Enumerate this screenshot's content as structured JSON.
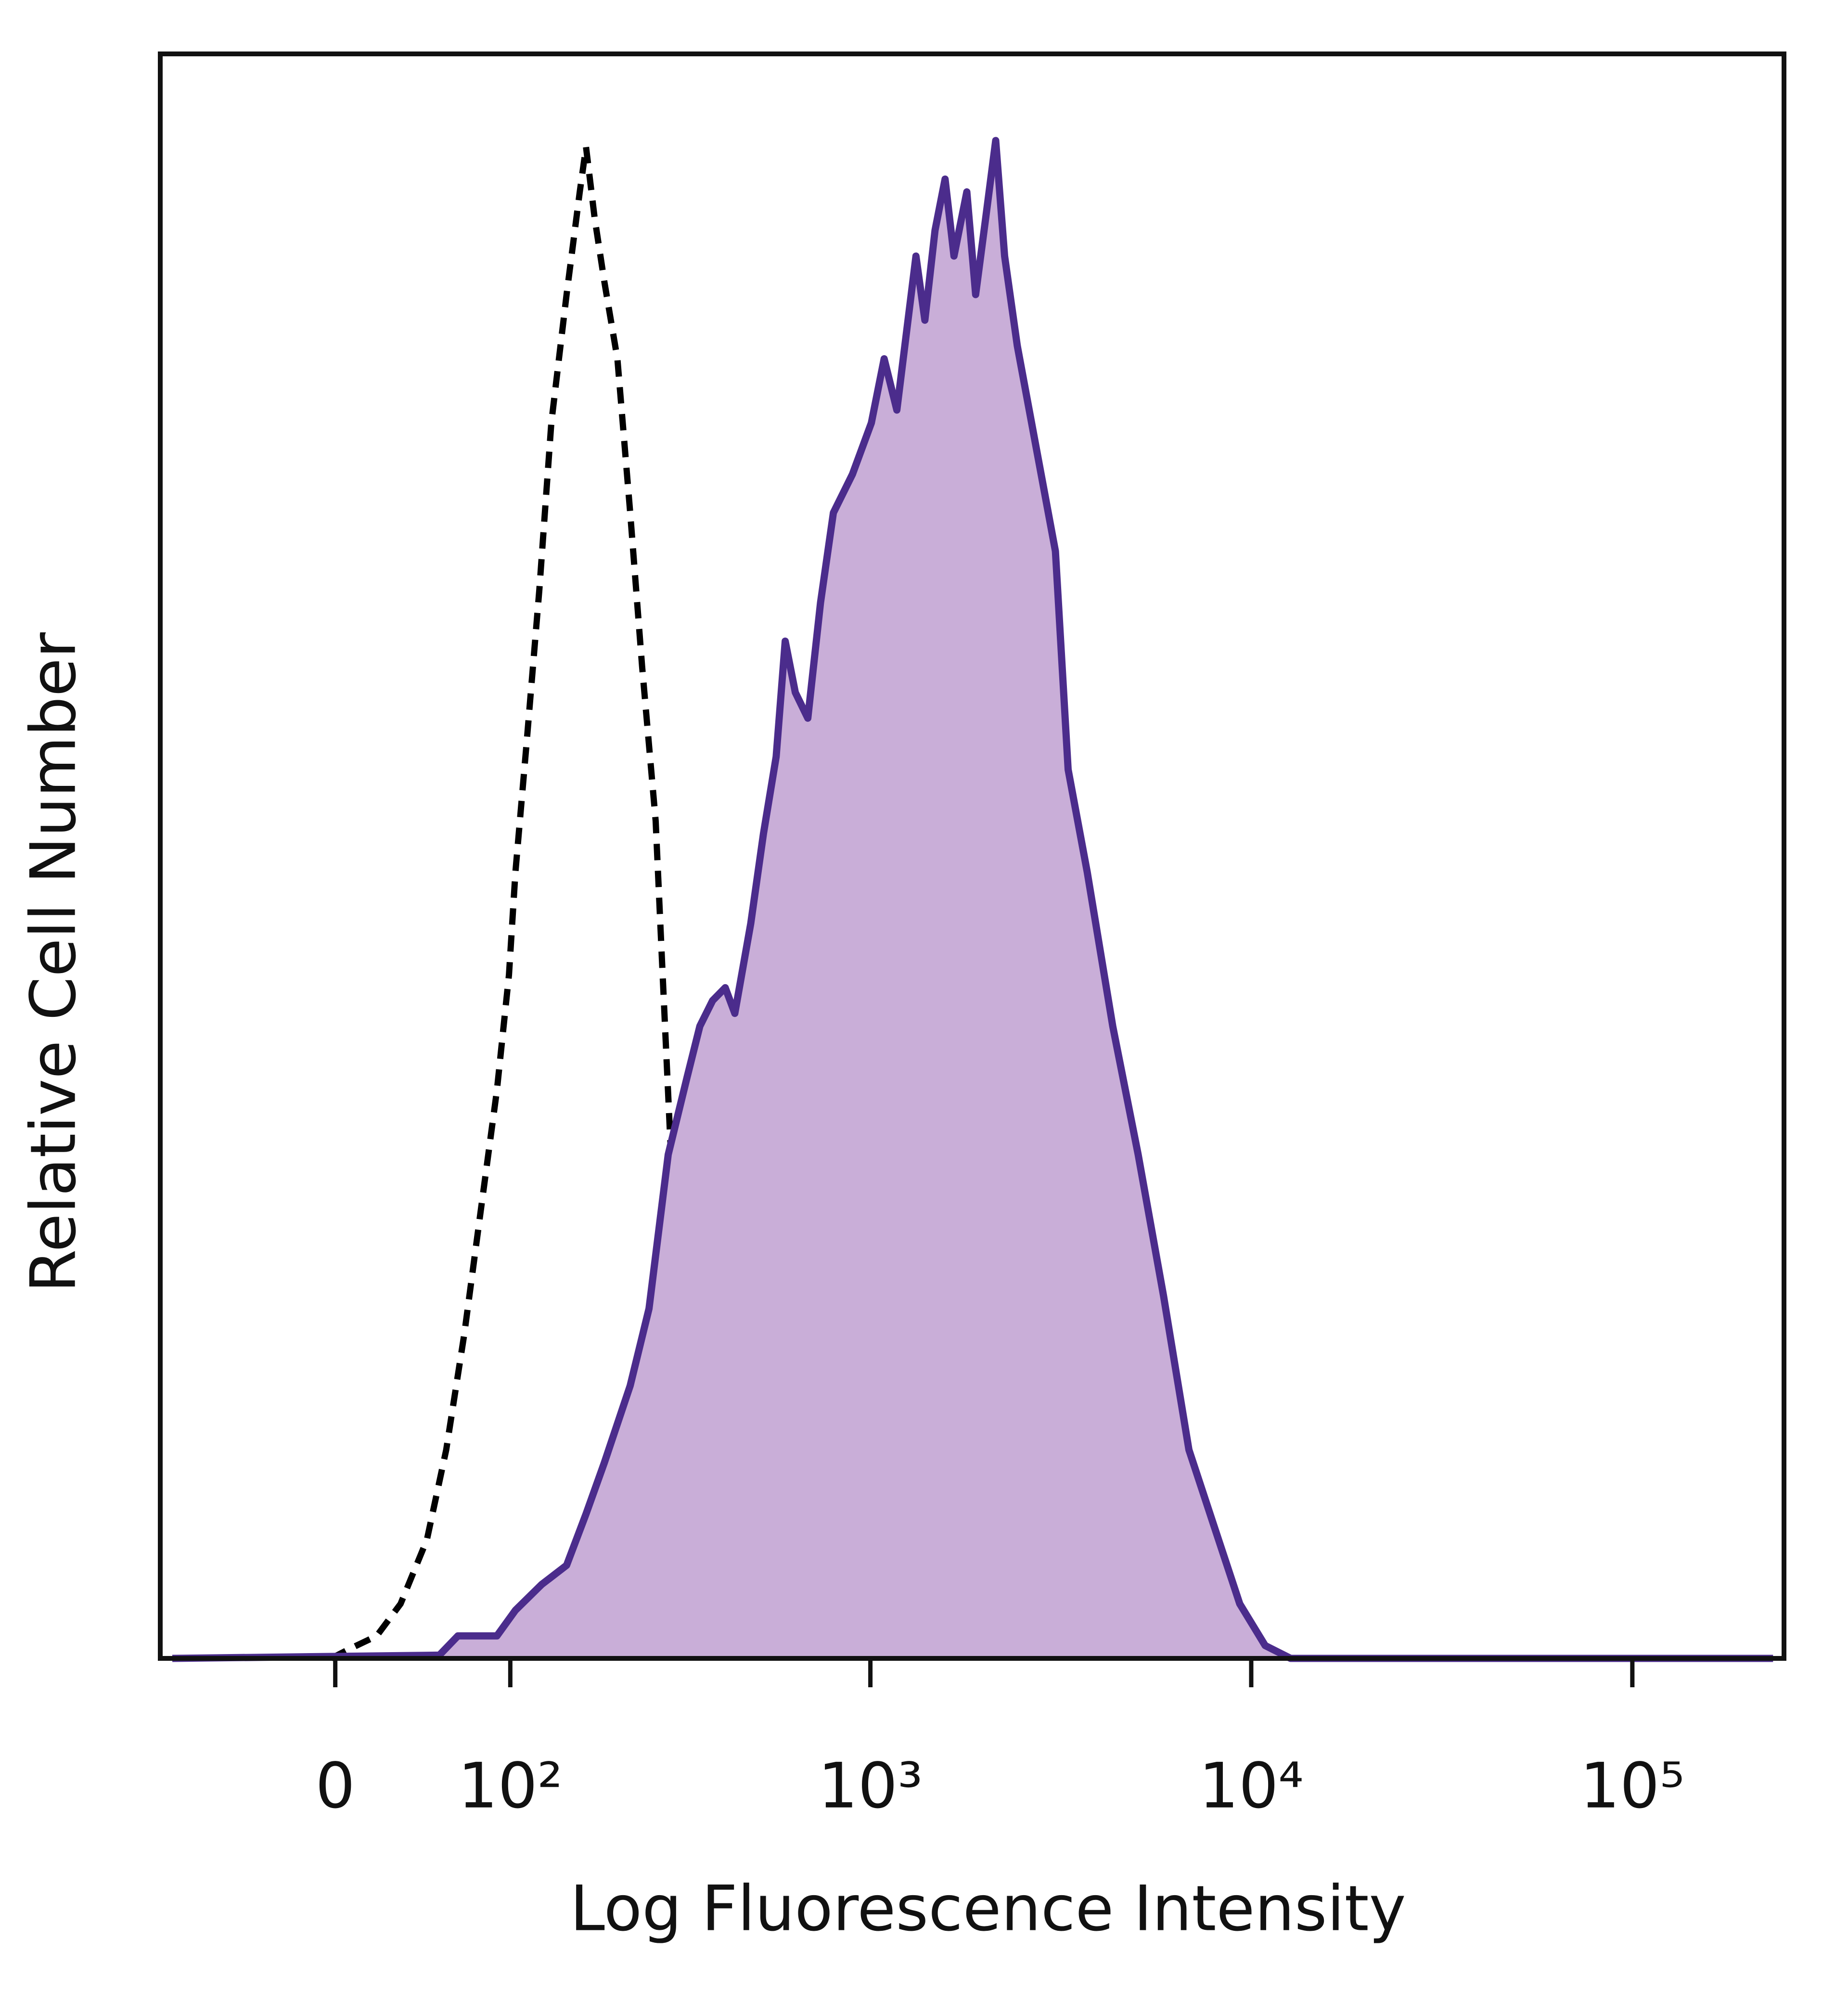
{
  "chart_data": {
    "type": "line",
    "x_label": "Log Fluorescence Intensity",
    "y_label": "Relative Cell Number",
    "xscale": "asinh",
    "xlim": [
      -100,
      250000
    ],
    "ylim": [
      0,
      100
    ],
    "xticks": [
      0,
      {
        "value": 100,
        "label": "10²"
      },
      {
        "value": 1000,
        "label": "10³"
      },
      {
        "value": 10000,
        "label": "10⁴"
      },
      {
        "value": 100000,
        "label": "10⁵"
      }
    ],
    "series": [
      {
        "color": "#000000",
        "dashed": true,
        "x": [
          -2,
          7,
          20,
          32,
          46,
          57,
          68,
          78,
          90,
          99,
          104,
          113,
          124,
          135,
          150,
          164,
          171,
          181,
          193,
          210,
          228,
          246,
          268,
          279,
          295,
          314,
          340,
          367,
          413,
          464,
          502
        ],
        "values": [
          0,
          0.6,
          1.4,
          3.4,
          7.4,
          13,
          20.2,
          27.4,
          35.4,
          42.6,
          49,
          57,
          66.6,
          77,
          85,
          91.4,
          94.2,
          89.8,
          85.8,
          81,
          71.4,
          61.8,
          52.2,
          43.4,
          31.4,
          23.4,
          17.8,
          9,
          2.6,
          0.6,
          0
        ]
      },
      {
        "color": "#4b2c8c",
        "fill": "#c9aed8",
        "dashed": false,
        "x": [
          -91,
          53,
          64,
          90,
          104,
          126,
          150,
          171,
          193,
          228,
          257,
          290,
          326,
          353,
          382,
          413,
          438,
          483,
          522,
          564,
          596,
          634,
          684,
          739,
          799,
          897,
          1006,
          1087,
          1174,
          1220,
          1318,
          1391,
          1479,
          1572,
          1659,
          1793,
          1891,
          2010,
          2135,
          2253,
          2433,
          2730,
          3063,
          3308,
          3712,
          4331,
          5050,
          5887,
          6863,
          8000,
          9330,
          10878,
          12688,
          234000
        ],
        "values": [
          0,
          0.2,
          1.4,
          1.4,
          3,
          4.6,
          5.8,
          9,
          12.2,
          17,
          21.8,
          31.4,
          36.2,
          39.4,
          41,
          41.8,
          40.2,
          45.8,
          51.4,
          56.2,
          63.4,
          60.2,
          58.6,
          65.8,
          71.4,
          73.8,
          77,
          81,
          77.8,
          81,
          87.4,
          83.4,
          89,
          92.2,
          87.4,
          91.4,
          85,
          89.8,
          94.6,
          87.4,
          81.8,
          75.4,
          69,
          55.4,
          49,
          39.4,
          31.4,
          22.6,
          13,
          8.2,
          3.4,
          0.8,
          0,
          0
        ]
      }
    ]
  }
}
